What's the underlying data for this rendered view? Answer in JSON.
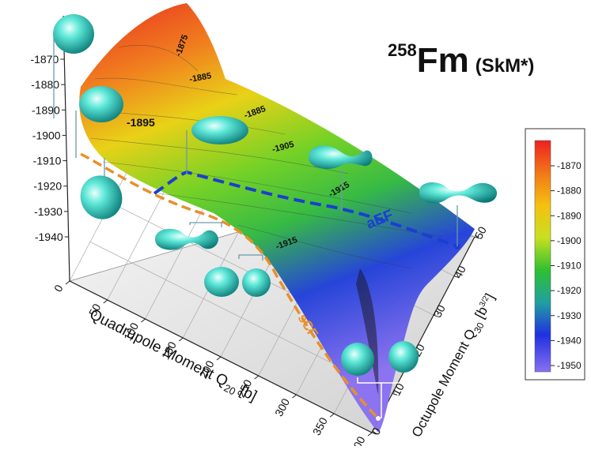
{
  "title": {
    "mass_number": "258",
    "element": "Fm",
    "model": "(SkM*)"
  },
  "chart_data": {
    "type": "surface",
    "xlabel": "Quadrupole Moment Q",
    "xlabel_sub": "20",
    "xlabel_unit": "[b]",
    "ylabel": "Octupole Moment Q",
    "ylabel_sub": "30",
    "ylabel_unit": "[b",
    "ylabel_unit_sup": "3/2",
    "ylabel_unit_end": "]",
    "x_ticks": [
      "0",
      "50",
      "100",
      "150",
      "200",
      "250",
      "300",
      "350",
      "400"
    ],
    "y_ticks": [
      "0",
      "10",
      "20",
      "30",
      "40",
      "50"
    ],
    "z_ticks": [
      "-1870",
      "-1880",
      "-1890",
      "-1900",
      "-1910",
      "-1920",
      "-1930",
      "-1940"
    ],
    "xlim": [
      0,
      400
    ],
    "ylim": [
      0,
      50
    ],
    "zlim": [
      -1945,
      -1870
    ],
    "colorbar": {
      "ticks": [
        "-1870",
        "-1880",
        "-1890",
        "-1900",
        "-1910",
        "-1920",
        "-1930",
        "-1940",
        "-1950"
      ],
      "range": [
        -1955,
        -1865
      ],
      "colors": [
        "#f02020",
        "#f07818",
        "#f5c010",
        "#c8e020",
        "#30c030",
        "#20a0a0",
        "#2030e0",
        "#8870f0"
      ]
    },
    "contour_labels": [
      "-1875",
      "-1885",
      "-1895",
      "-1895",
      "-1885",
      "-1905",
      "-1915",
      "-1915"
    ],
    "paths": [
      {
        "name": "aEF",
        "color": "#1a3fd0"
      },
      {
        "name": "sCF",
        "color": "#e8902a"
      }
    ]
  }
}
